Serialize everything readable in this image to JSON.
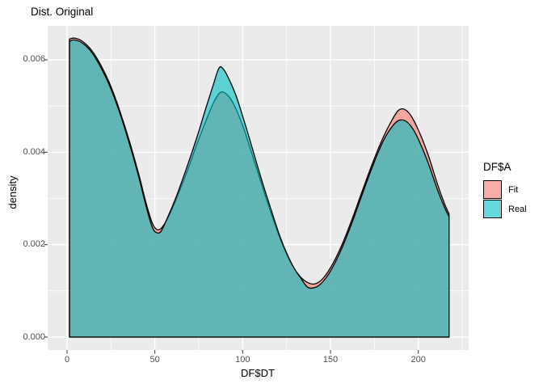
{
  "title": "Dist. Original",
  "panel": {
    "background": "#EBEBEB",
    "gridline_color": "#FFFFFF",
    "tick_color": "#333333"
  },
  "colors": {
    "fit_fill": "#F8766D",
    "real_fill": "#00BFC4",
    "outline": "#000000",
    "tick_label": "#4D4D4D",
    "fill_alpha": 0.6
  },
  "legend": {
    "title": "DF$A",
    "items": [
      {
        "label": "Fit",
        "color": "#F8766D"
      },
      {
        "label": "Real",
        "color": "#00BFC4"
      }
    ]
  },
  "chart_data": {
    "type": "area",
    "title": "Dist. Original",
    "xlabel": "DF$DT",
    "ylabel": "density",
    "xlim": [
      -11,
      228.7
    ],
    "ylim": [
      -0.00028,
      0.00674
    ],
    "x_tick_values": [
      0,
      50,
      100,
      150,
      200
    ],
    "x_tick_labels": [
      "0",
      "50",
      "100",
      "150",
      "200"
    ],
    "x_minor_ticks": [
      25,
      75,
      125,
      175,
      225
    ],
    "y_tick_values": [
      0,
      0.002,
      0.004,
      0.006
    ],
    "y_tick_labels": [
      "0.000",
      "0.002",
      "0.004",
      "0.006"
    ],
    "y_minor_ticks": [
      0.001,
      0.003,
      0.005
    ],
    "grid": true,
    "legend_position": "right",
    "series": [
      {
        "name": "Fit",
        "color": "#F8766D",
        "points": [
          [
            1.4,
            0.00645
          ],
          [
            4,
            0.00647
          ],
          [
            8,
            0.00642
          ],
          [
            13,
            0.00625
          ],
          [
            18,
            0.00597
          ],
          [
            24,
            0.00551
          ],
          [
            30,
            0.0049
          ],
          [
            36,
            0.00418
          ],
          [
            41,
            0.0035
          ],
          [
            45,
            0.0029
          ],
          [
            48.5,
            0.00247
          ],
          [
            51,
            0.00233
          ],
          [
            53.5,
            0.00235
          ],
          [
            57,
            0.00255
          ],
          [
            62,
            0.00297
          ],
          [
            68,
            0.00355
          ],
          [
            74,
            0.00418
          ],
          [
            80,
            0.00477
          ],
          [
            84,
            0.00512
          ],
          [
            87.5,
            0.0053
          ],
          [
            91,
            0.00525
          ],
          [
            95,
            0.00503
          ],
          [
            100,
            0.00458
          ],
          [
            105,
            0.004
          ],
          [
            110,
            0.0034
          ],
          [
            116,
            0.0027
          ],
          [
            122,
            0.00207
          ],
          [
            128,
            0.00157
          ],
          [
            133,
            0.0013
          ],
          [
            137.5,
            0.00117
          ],
          [
            141,
            0.00115
          ],
          [
            145,
            0.00124
          ],
          [
            150,
            0.0015
          ],
          [
            156,
            0.00195
          ],
          [
            162,
            0.00252
          ],
          [
            168,
            0.00315
          ],
          [
            174,
            0.00377
          ],
          [
            180,
            0.00432
          ],
          [
            184.5,
            0.00466
          ],
          [
            188.5,
            0.0049
          ],
          [
            192,
            0.00493
          ],
          [
            196,
            0.00478
          ],
          [
            201,
            0.0044
          ],
          [
            206,
            0.0039
          ],
          [
            211,
            0.0033
          ],
          [
            215,
            0.00288
          ],
          [
            217.5,
            0.00267
          ]
        ]
      },
      {
        "name": "Real",
        "color": "#00BFC4",
        "points": [
          [
            1.4,
            0.0064
          ],
          [
            4,
            0.00643
          ],
          [
            8,
            0.00638
          ],
          [
            13,
            0.00621
          ],
          [
            18,
            0.00592
          ],
          [
            24,
            0.00546
          ],
          [
            30,
            0.00485
          ],
          [
            36,
            0.00412
          ],
          [
            41,
            0.00344
          ],
          [
            45,
            0.00283
          ],
          [
            48.5,
            0.00238
          ],
          [
            51,
            0.00226
          ],
          [
            53.5,
            0.00229
          ],
          [
            57,
            0.00257
          ],
          [
            62,
            0.00302
          ],
          [
            68,
            0.00365
          ],
          [
            74,
            0.00433
          ],
          [
            79,
            0.00495
          ],
          [
            83,
            0.00543
          ],
          [
            86.5,
            0.00582
          ],
          [
            89,
            0.0058
          ],
          [
            92,
            0.0056
          ],
          [
            96,
            0.00525
          ],
          [
            100,
            0.00478
          ],
          [
            105,
            0.00415
          ],
          [
            110,
            0.0035
          ],
          [
            116,
            0.00278
          ],
          [
            122,
            0.0021
          ],
          [
            128,
            0.00158
          ],
          [
            133,
            0.00128
          ],
          [
            137,
            0.00108
          ],
          [
            141,
            0.00107
          ],
          [
            145,
            0.00117
          ],
          [
            150,
            0.00143
          ],
          [
            156,
            0.00188
          ],
          [
            162,
            0.00245
          ],
          [
            168,
            0.00308
          ],
          [
            174,
            0.0037
          ],
          [
            180,
            0.00424
          ],
          [
            185,
            0.00455
          ],
          [
            189,
            0.00469
          ],
          [
            193,
            0.00467
          ],
          [
            197,
            0.0045
          ],
          [
            201,
            0.0042
          ],
          [
            206,
            0.00373
          ],
          [
            211,
            0.00318
          ],
          [
            215,
            0.0028
          ],
          [
            217.5,
            0.00261
          ]
        ]
      }
    ]
  }
}
